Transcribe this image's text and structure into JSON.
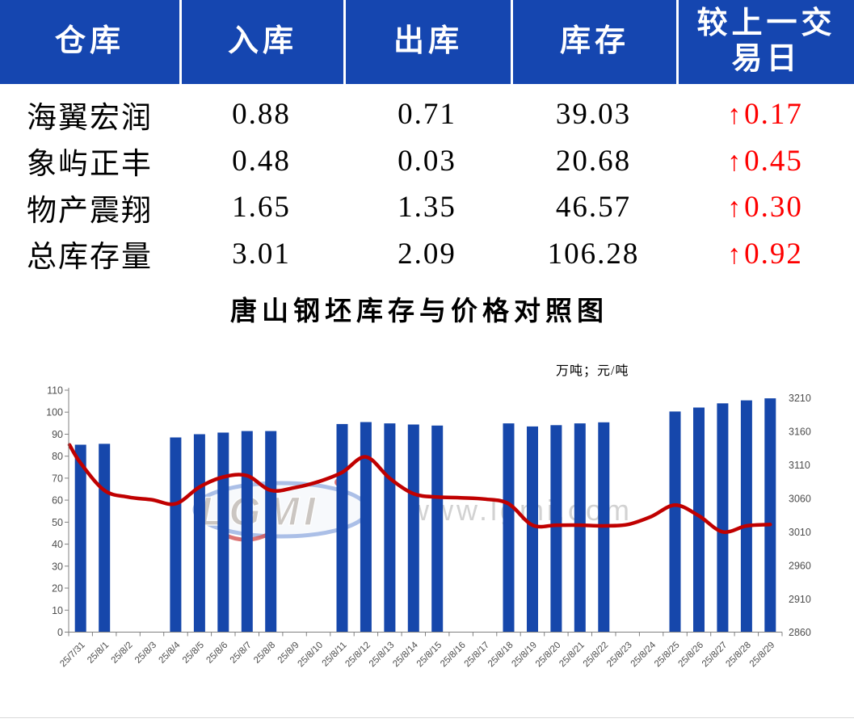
{
  "table": {
    "headers": [
      "仓库",
      "入库",
      "出库",
      "库存",
      "较上一交易日"
    ],
    "rows": [
      {
        "name": "海翼宏润",
        "inbound": "0.88",
        "outbound": "0.71",
        "stock": "39.03",
        "arrow": "↑",
        "change": "0.17"
      },
      {
        "name": "象屿正丰",
        "inbound": "0.48",
        "outbound": "0.03",
        "stock": "20.68",
        "arrow": "↑",
        "change": "0.45"
      },
      {
        "name": "物产震翔",
        "inbound": "1.65",
        "outbound": "1.35",
        "stock": "46.57",
        "arrow": "↑",
        "change": "0.30"
      },
      {
        "name": "总库存量",
        "inbound": "3.01",
        "outbound": "2.09",
        "stock": "106.28",
        "arrow": "↑",
        "change": "0.92"
      }
    ],
    "colors": {
      "header_bg": "#1546b0",
      "header_text": "#ffffff",
      "change_red": "#fe0000"
    }
  },
  "chart": {
    "title": "唐山钢坯库存与价格对照图",
    "units_label": "万吨；元/吨",
    "watermark": {
      "logo_text": "LGMI",
      "url_text": "www.lgmi.com"
    }
  },
  "chart_data": {
    "type": "bar+line",
    "title": "唐山钢坯库存与价格对照图",
    "categories": [
      "25/7/31",
      "25/8/1",
      "25/8/2",
      "25/8/3",
      "25/8/4",
      "25/8/5",
      "25/8/6",
      "25/8/7",
      "25/8/8",
      "25/8/9",
      "25/8/10",
      "25/8/11",
      "25/8/12",
      "25/8/13",
      "25/8/14",
      "25/8/15",
      "25/8/16",
      "25/8/17",
      "25/8/18",
      "25/8/19",
      "25/8/20",
      "25/8/21",
      "25/8/22",
      "25/8/23",
      "25/8/24",
      "25/8/25",
      "25/8/26",
      "25/8/27",
      "25/8/28",
      "25/8/29"
    ],
    "series": [
      {
        "name": "库存",
        "type": "bar",
        "axis": "left",
        "unit": "万吨",
        "values": [
          85.2,
          85.6,
          null,
          null,
          88.5,
          90.0,
          90.7,
          91.4,
          91.4,
          null,
          null,
          94.6,
          95.5,
          94.9,
          94.4,
          93.9,
          null,
          null,
          94.9,
          93.5,
          94.1,
          94.9,
          95.4,
          null,
          null,
          100.3,
          102.1,
          104.0,
          105.36,
          106.28
        ]
      },
      {
        "name": "价格",
        "type": "line",
        "axis": "right",
        "unit": "元/吨",
        "edge_start_value": 3140,
        "values": [
          3113,
          3072,
          3062,
          3058,
          3052,
          3077,
          3092,
          3094,
          3072,
          3076,
          3085,
          3099,
          3122,
          3090,
          3067,
          3062,
          3061,
          3059,
          3052,
          3020,
          3020,
          3020,
          3019,
          3021,
          3033,
          3050,
          3034,
          3010,
          3019,
          3021
        ]
      }
    ],
    "left_axis": {
      "min": 0,
      "max": 110,
      "step": 10,
      "ticks": [
        0,
        10,
        20,
        30,
        40,
        50,
        60,
        70,
        80,
        90,
        100,
        110
      ]
    },
    "right_axis": {
      "min": 2860,
      "max": 3210,
      "step": 50,
      "ticks": [
        2860,
        2910,
        2960,
        3010,
        3060,
        3110,
        3160,
        3210
      ]
    },
    "grid": false,
    "legend": "none",
    "colors": {
      "bar": "#1647ab",
      "line": "#c00000",
      "axis": "#808080",
      "tick_label": "#4d4d4d"
    }
  }
}
